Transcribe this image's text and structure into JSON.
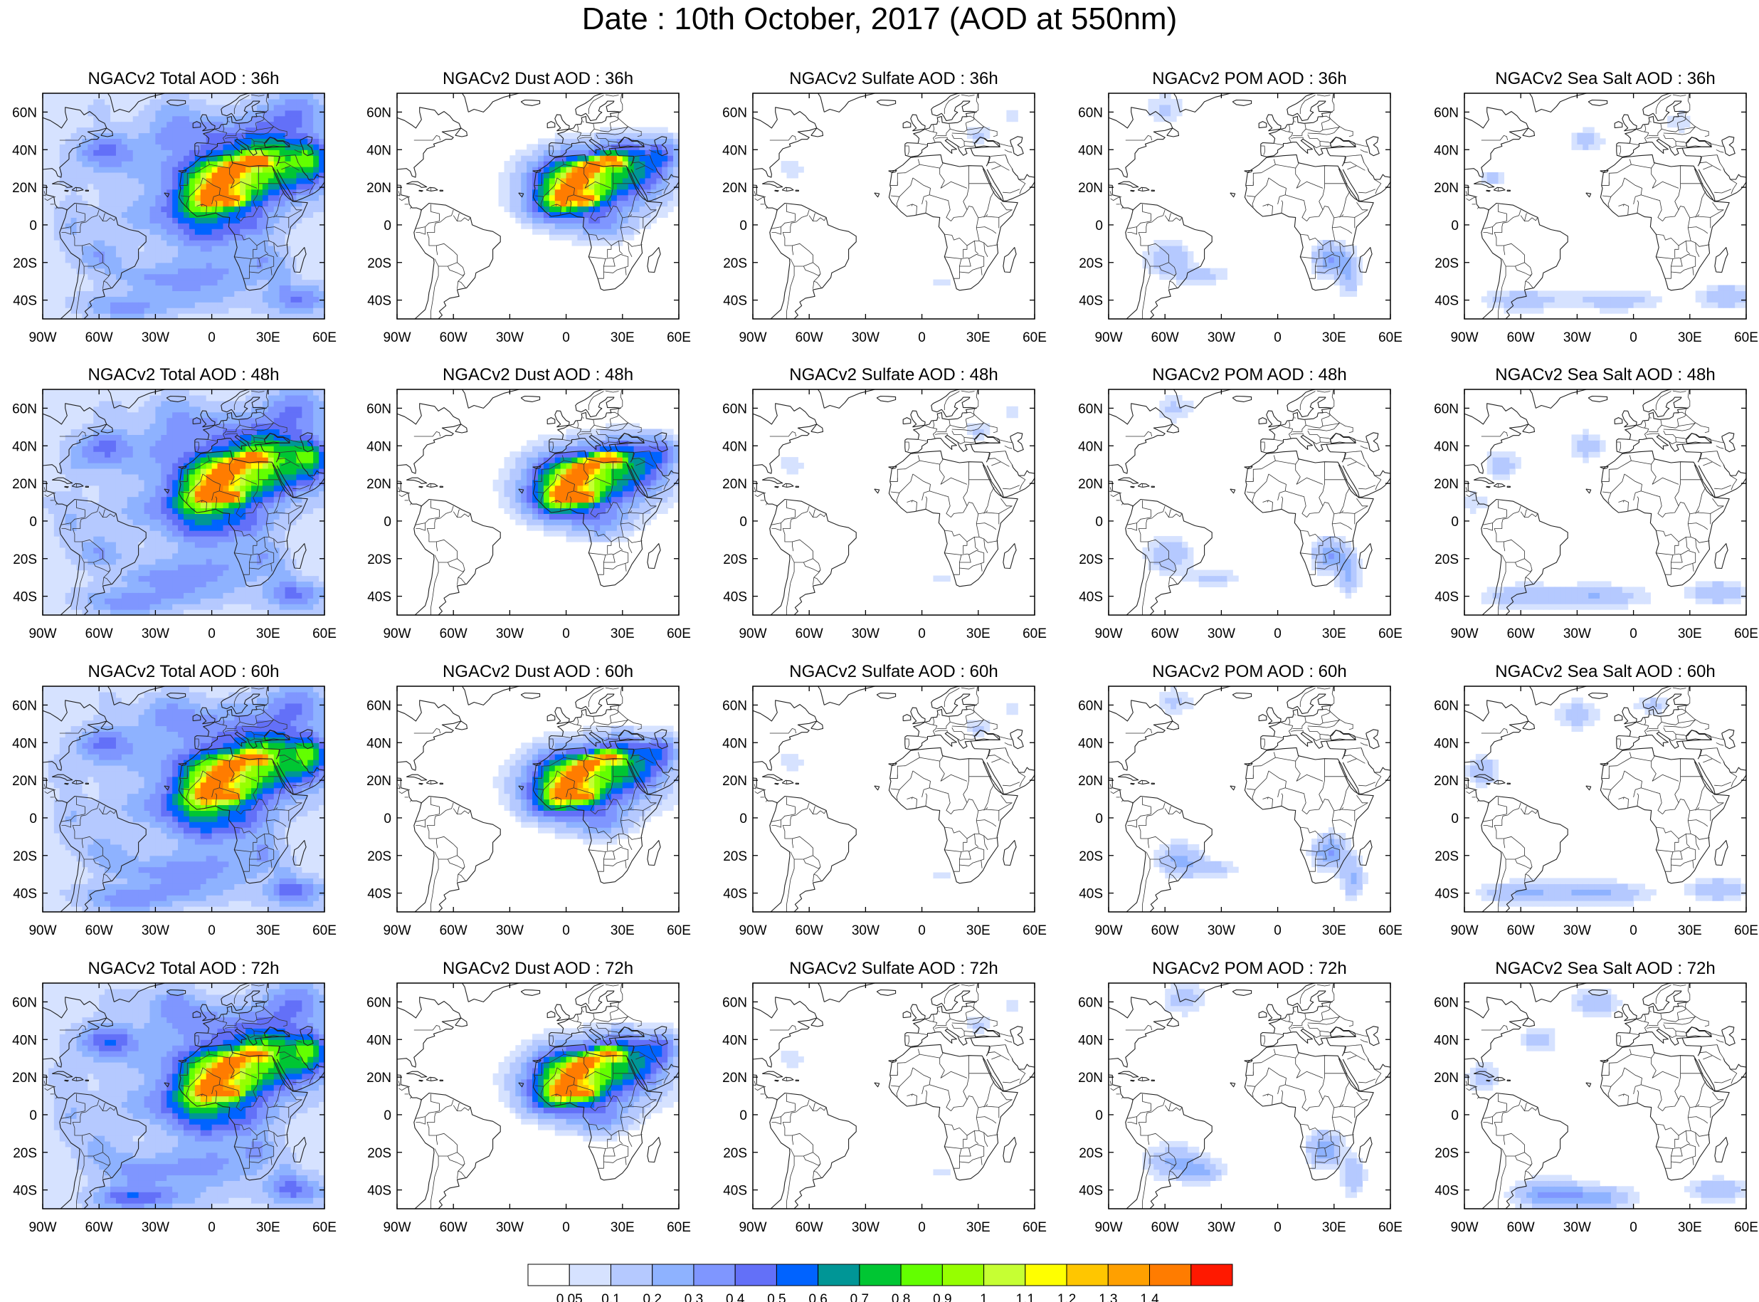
{
  "title": "Date : 10th October, 2017 (AOD at 550nm)",
  "grid": {
    "rows": [
      "36h",
      "48h",
      "60h",
      "72h"
    ],
    "panel_titles": [
      [
        "NGACv2 Total AOD : 36h",
        "NGACv2 Dust AOD : 36h",
        "NGACv2 Sulfate AOD : 36h",
        "NGACv2 POM AOD : 36h",
        "NGACv2 Sea Salt AOD : 36h"
      ],
      [
        "NGACv2 Total AOD : 48h",
        "NGACv2 Dust AOD : 48h",
        "NGACv2 Sulfate AOD : 48h",
        "NGACv2 POM AOD : 48h",
        "NGACv2 Sea Salt AOD : 48h"
      ],
      [
        "NGACv2 Total AOD : 60h",
        "NGACv2 Dust AOD : 60h",
        "NGACv2 Sulfate AOD : 60h",
        "NGACv2 POM AOD : 60h",
        "NGACv2 Sea Salt AOD : 60h"
      ],
      [
        "NGACv2 Total AOD : 72h",
        "NGACv2 Dust AOD : 72h",
        "NGACv2 Sulfate AOD : 72h",
        "NGACv2 POM AOD : 72h",
        "NGACv2 Sea Salt  AOD : 72h"
      ]
    ],
    "species": [
      "Total",
      "Dust",
      "Sulfate",
      "POM",
      "Sea Salt"
    ]
  },
  "axes": {
    "lon_range": [
      -90,
      60
    ],
    "lat_range": [
      -50,
      70
    ],
    "lon_ticks": [
      {
        "value": -90,
        "label": "90W"
      },
      {
        "value": -60,
        "label": "60W"
      },
      {
        "value": -30,
        "label": "30W"
      },
      {
        "value": 0,
        "label": "0"
      },
      {
        "value": 30,
        "label": "30E"
      },
      {
        "value": 60,
        "label": "60E"
      }
    ],
    "lat_ticks": [
      {
        "value": 60,
        "label": "60N"
      },
      {
        "value": 40,
        "label": "40N"
      },
      {
        "value": 20,
        "label": "20N"
      },
      {
        "value": 0,
        "label": "0"
      },
      {
        "value": -20,
        "label": "20S"
      },
      {
        "value": -40,
        "label": "40S"
      }
    ]
  },
  "colorbar": {
    "colors": [
      "#ffffff",
      "#d6e2ff",
      "#b5c9ff",
      "#8eb2ff",
      "#7f96ff",
      "#6370f8",
      "#0063ff",
      "#009696",
      "#00c633",
      "#63ff00",
      "#96ff00",
      "#c6ff33",
      "#ffff00",
      "#ffc600",
      "#ffa000",
      "#ff7c00",
      "#ff1900"
    ],
    "labels": [
      "0.05",
      "0.1",
      "0.2",
      "0.3",
      "0.4",
      "0.5",
      "0.6",
      "0.7",
      "0.8",
      "0.9",
      "1",
      "1.1",
      "1.2",
      "1.3",
      "1.4"
    ]
  },
  "chart_data": {
    "type": "heatmap",
    "title": "Date : 10th October, 2017 (AOD at 550nm)",
    "variable": "AOD at 550nm",
    "date": "10th October, 2017",
    "lon_range": [
      -90,
      60
    ],
    "lat_range": [
      -50,
      70
    ],
    "approx_features": [
      {
        "species": "Total",
        "lead": "36h",
        "feature": "Saharan dust plume",
        "peak_aod": 1.4,
        "peak_lon": -2,
        "peak_lat": 15
      },
      {
        "species": "Dust",
        "lead": "36h",
        "feature": "Saharan dust plume",
        "peak_aod": 1.4,
        "peak_lon": -2,
        "peak_lat": 15
      },
      {
        "species": "Total",
        "lead": "48h",
        "feature": "Saharan dust plume",
        "peak_aod": 1.4,
        "peak_lon": -3,
        "peak_lat": 14
      },
      {
        "species": "Total",
        "lead": "60h",
        "feature": "Saharan dust plume",
        "peak_aod": 1.3,
        "peak_lon": -3,
        "peak_lat": 14
      },
      {
        "species": "Total",
        "lead": "72h",
        "feature": "Saharan dust plume",
        "peak_aod": 1.3,
        "peak_lon": -3,
        "peak_lat": 14
      },
      {
        "species": "POM",
        "lead": "36h-72h",
        "feature": "southern Africa biomass burning",
        "peak_aod": 0.4,
        "peak_lon": 28,
        "peak_lat": -20
      },
      {
        "species": "POM",
        "lead": "36h-72h",
        "feature": "South America biomass burning",
        "peak_aod": 0.2,
        "peak_lon": -55,
        "peak_lat": -22
      },
      {
        "species": "Sea Salt",
        "lead": "36h-72h",
        "feature": "Southern Ocean",
        "peak_aod": 0.3,
        "peak_lon": -30,
        "peak_lat": -42
      }
    ]
  }
}
